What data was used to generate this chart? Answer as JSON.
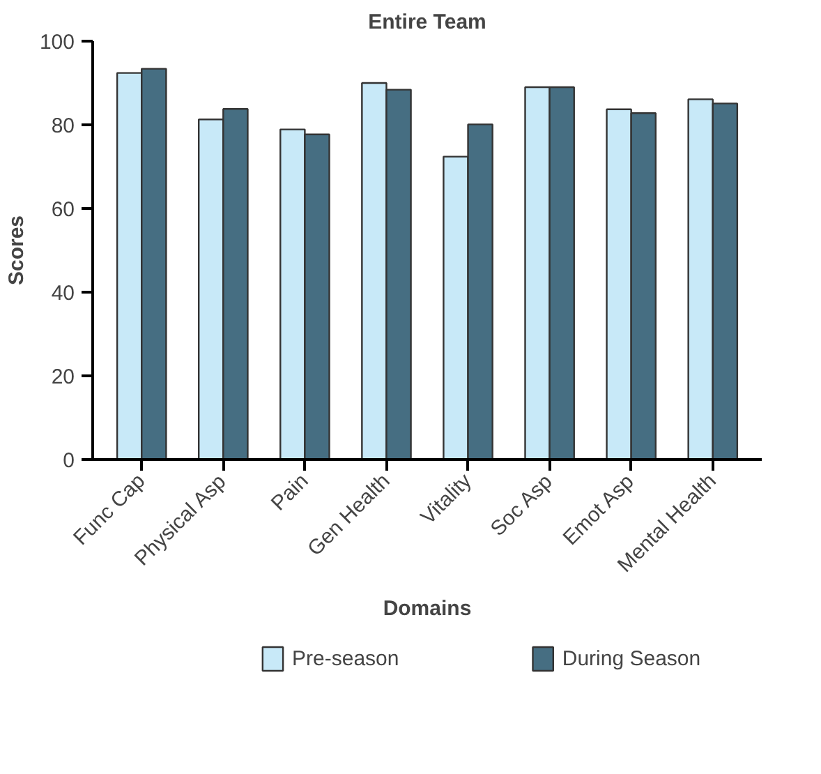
{
  "chart_data": {
    "type": "bar",
    "title": "Entire Team",
    "xlabel": "Domains",
    "ylabel": "Scores",
    "categories": [
      "Func Cap",
      "Physical Asp",
      "Pain",
      "Gen Health",
      "Vitality",
      "Soc Asp",
      "Emot Asp",
      "Mental Health"
    ],
    "series": [
      {
        "name": "Pre-season",
        "color": "#c8e9f8",
        "values": [
          92.4,
          81.3,
          78.9,
          90.0,
          72.4,
          89.0,
          83.7,
          86.1
        ]
      },
      {
        "name": "During Season",
        "color": "#466e82",
        "values": [
          93.4,
          83.8,
          77.7,
          88.4,
          80.1,
          89.0,
          82.8,
          85.1
        ]
      }
    ],
    "ylim": [
      0,
      100
    ],
    "yticks": [
      0,
      20,
      40,
      60,
      80,
      100
    ],
    "grid": false,
    "legend": "bottom"
  }
}
